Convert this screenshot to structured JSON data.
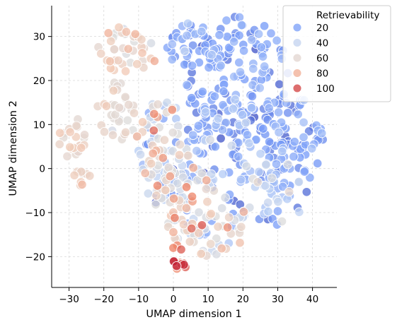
{
  "chart_data": {
    "type": "scatter",
    "title": "",
    "xlabel": "UMAP dimension 1",
    "ylabel": "UMAP dimension 2",
    "xlim": [
      -35,
      47
    ],
    "ylim": [
      -27,
      37
    ],
    "xticks": [
      -30,
      -20,
      -10,
      0,
      10,
      20,
      30,
      40
    ],
    "yticks": [
      -20,
      -10,
      0,
      10,
      20,
      30
    ],
    "x_tick_labels": [
      "−30",
      "−20",
      "−10",
      "0",
      "10",
      "20",
      "30",
      "40"
    ],
    "y_tick_labels": [
      "−20",
      "−10",
      "0",
      "10",
      "20",
      "30"
    ],
    "grid": true,
    "legend": {
      "title": "Retrievability",
      "placement": "top-right",
      "entries": [
        {
          "label": "20",
          "value": 20
        },
        {
          "label": "40",
          "value": 40
        },
        {
          "label": "60",
          "value": 60
        },
        {
          "label": "80",
          "value": 80
        },
        {
          "label": "100",
          "value": 100
        }
      ]
    },
    "color_scale": {
      "name": "coolwarm",
      "domain": [
        0,
        110
      ],
      "stops": [
        "#3b4cc0",
        "#7b9ff9",
        "#c0d4f5",
        "#dddcdc",
        "#f2cbb7",
        "#ee8468",
        "#b40426"
      ]
    },
    "clusters": [
      {
        "region": "upper-right blue mass",
        "cx": 18,
        "cy": 21,
        "rx": 15,
        "ry": 14,
        "n": 140,
        "value_mean": 18,
        "value_sd": 6
      },
      {
        "region": "right blue mass",
        "cx": 33,
        "cy": 6,
        "rx": 10,
        "ry": 11,
        "n": 90,
        "value_mean": 20,
        "value_sd": 7
      },
      {
        "region": "right lower blue",
        "cx": 27,
        "cy": -6,
        "rx": 12,
        "ry": 8,
        "n": 50,
        "value_mean": 28,
        "value_sd": 14
      },
      {
        "region": "center-right blue",
        "cx": 14,
        "cy": 8,
        "rx": 9,
        "ry": 10,
        "n": 60,
        "value_mean": 24,
        "value_sd": 10
      },
      {
        "region": "center-left mixed",
        "cx": -3,
        "cy": 6,
        "rx": 9,
        "ry": 10,
        "n": 80,
        "value_mean": 52,
        "value_sd": 20
      },
      {
        "region": "upper-left pink",
        "cx": -13,
        "cy": 27,
        "rx": 9,
        "ry": 6,
        "n": 40,
        "value_mean": 66,
        "value_sd": 8
      },
      {
        "region": "left pale",
        "cx": -17,
        "cy": 13,
        "rx": 6,
        "ry": 7,
        "n": 35,
        "value_mean": 60,
        "value_sd": 6
      },
      {
        "region": "far left pink",
        "cx": -29,
        "cy": 7,
        "rx": 4,
        "ry": 5,
        "n": 22,
        "value_mean": 65,
        "value_sd": 6
      },
      {
        "region": "far left lower",
        "cx": -26,
        "cy": -2,
        "rx": 3,
        "ry": 2,
        "n": 10,
        "value_mean": 68,
        "value_sd": 4
      },
      {
        "region": "lower center mixed",
        "cx": 10,
        "cy": -13,
        "rx": 12,
        "ry": 7,
        "n": 70,
        "value_mean": 55,
        "value_sd": 18
      },
      {
        "region": "bottom center red",
        "cx": 2,
        "cy": -20,
        "rx": 3,
        "ry": 3,
        "n": 12,
        "value_mean": 95,
        "value_sd": 6
      },
      {
        "region": "center band mixed",
        "cx": 2,
        "cy": -4,
        "rx": 10,
        "ry": 6,
        "n": 70,
        "value_mean": 45,
        "value_sd": 22
      },
      {
        "region": "top center blue",
        "cx": 5,
        "cy": 28,
        "rx": 8,
        "ry": 5,
        "n": 35,
        "value_mean": 22,
        "value_sd": 8
      }
    ]
  }
}
